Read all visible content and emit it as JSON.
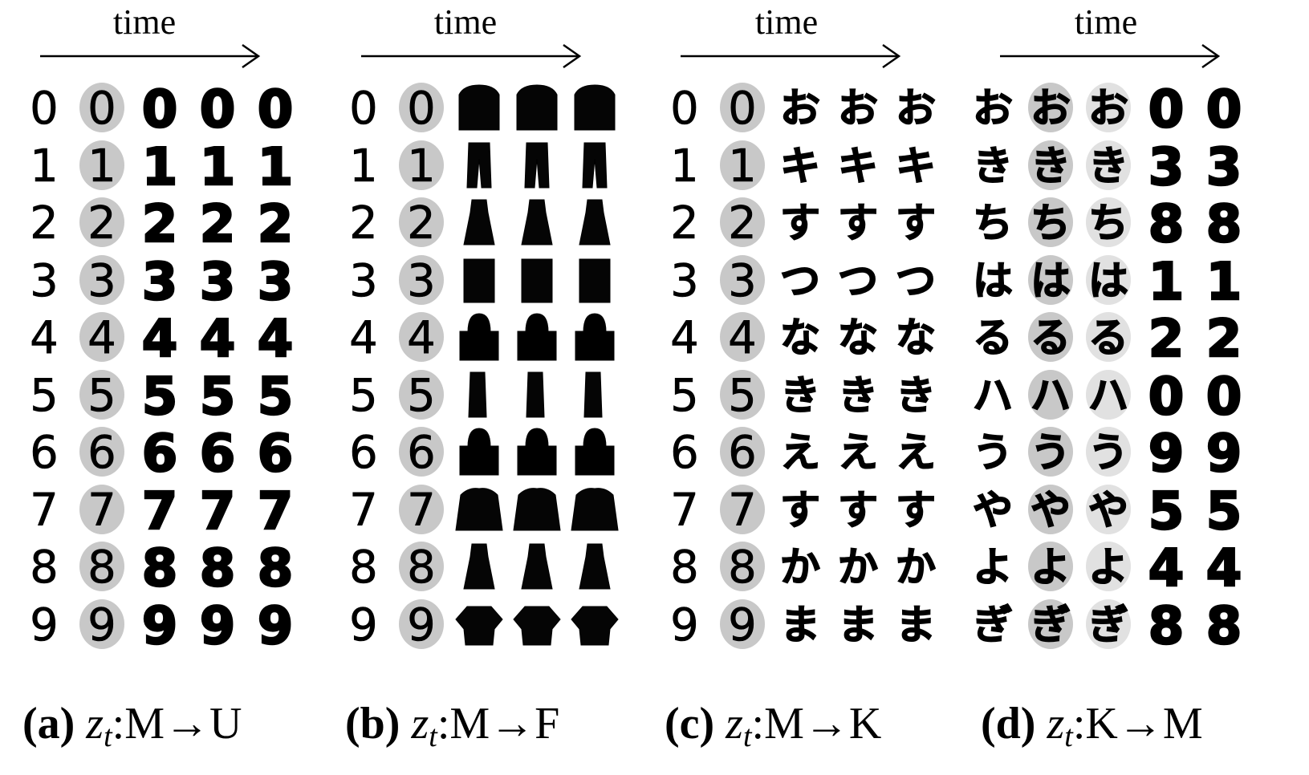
{
  "figure": {
    "rows": 10,
    "columns_per_panel": 5,
    "panels": [
      {
        "id": "a",
        "time_label": "time",
        "caption_tag": "(a)",
        "caption_var": "z",
        "caption_sub": "t",
        "caption_mapping": ":M→U",
        "frames": [
          [
            "0",
            "0",
            "0",
            "0",
            "0"
          ],
          [
            "1",
            "1",
            "1",
            "1",
            "1"
          ],
          [
            "2",
            "2",
            "2",
            "2",
            "2"
          ],
          [
            "3",
            "3",
            "3",
            "3",
            "3"
          ],
          [
            "4",
            "4",
            "4",
            "4",
            "4"
          ],
          [
            "5",
            "5",
            "5",
            "5",
            "5"
          ],
          [
            "6",
            "6",
            "6",
            "6",
            "6"
          ],
          [
            "7",
            "7",
            "7",
            "7",
            "7"
          ],
          [
            "8",
            "8",
            "8",
            "8",
            "8"
          ],
          [
            "9",
            "9",
            "9",
            "9",
            "9"
          ]
        ]
      },
      {
        "id": "b",
        "time_label": "time",
        "caption_tag": "(b)",
        "caption_var": "z",
        "caption_sub": "t",
        "caption_mapping": ":M→F",
        "frames": [
          [
            "0",
            "0",
            "sweater",
            "sweater",
            "sweater"
          ],
          [
            "1",
            "1",
            "trouser",
            "trouser",
            "trouser"
          ],
          [
            "2",
            "2",
            "dress",
            "dress",
            "dress"
          ],
          [
            "3",
            "3",
            "coat",
            "coat",
            "coat"
          ],
          [
            "4",
            "4",
            "bag",
            "bag",
            "bag"
          ],
          [
            "5",
            "5",
            "boot",
            "boot",
            "boot"
          ],
          [
            "6",
            "6",
            "bag",
            "bag",
            "bag"
          ],
          [
            "7",
            "7",
            "pullover",
            "pullover",
            "pullover"
          ],
          [
            "8",
            "8",
            "dress",
            "dress",
            "dress"
          ],
          [
            "9",
            "9",
            "shirt",
            "shirt",
            "shirt"
          ]
        ]
      },
      {
        "id": "c",
        "time_label": "time",
        "caption_tag": "(c)",
        "caption_var": "z",
        "caption_sub": "t",
        "caption_mapping": ":M→K",
        "frames": [
          [
            "0",
            "0",
            "お",
            "お",
            "お"
          ],
          [
            "1",
            "1",
            "キ",
            "キ",
            "キ"
          ],
          [
            "2",
            "2",
            "す",
            "す",
            "す"
          ],
          [
            "3",
            "3",
            "つ",
            "つ",
            "つ"
          ],
          [
            "4",
            "4",
            "な",
            "な",
            "な"
          ],
          [
            "5",
            "5",
            "き",
            "き",
            "き"
          ],
          [
            "6",
            "6",
            "え",
            "え",
            "え"
          ],
          [
            "7",
            "7",
            "す",
            "す",
            "す"
          ],
          [
            "8",
            "8",
            "か",
            "か",
            "か"
          ],
          [
            "9",
            "9",
            "ま",
            "ま",
            "ま"
          ]
        ]
      },
      {
        "id": "d",
        "time_label": "time",
        "caption_tag": "(d)",
        "caption_var": "z",
        "caption_sub": "t",
        "caption_mapping": ":K→M",
        "frames": [
          [
            "お",
            "お",
            "お",
            "0",
            "0"
          ],
          [
            "き",
            "き",
            "き",
            "3",
            "3"
          ],
          [
            "ち",
            "ち",
            "ち",
            "8",
            "8"
          ],
          [
            "は",
            "は",
            "は",
            "1",
            "1"
          ],
          [
            "る",
            "る",
            "る",
            "2",
            "2"
          ],
          [
            "ハ",
            "ハ",
            "ハ",
            "0",
            "0"
          ],
          [
            "う",
            "う",
            "う",
            "9",
            "9"
          ],
          [
            "や",
            "や",
            "や",
            "5",
            "5"
          ],
          [
            "よ",
            "よ",
            "よ",
            "4",
            "4"
          ],
          [
            "ぎ",
            "ぎ",
            "ぎ",
            "8",
            "8"
          ]
        ]
      }
    ]
  }
}
